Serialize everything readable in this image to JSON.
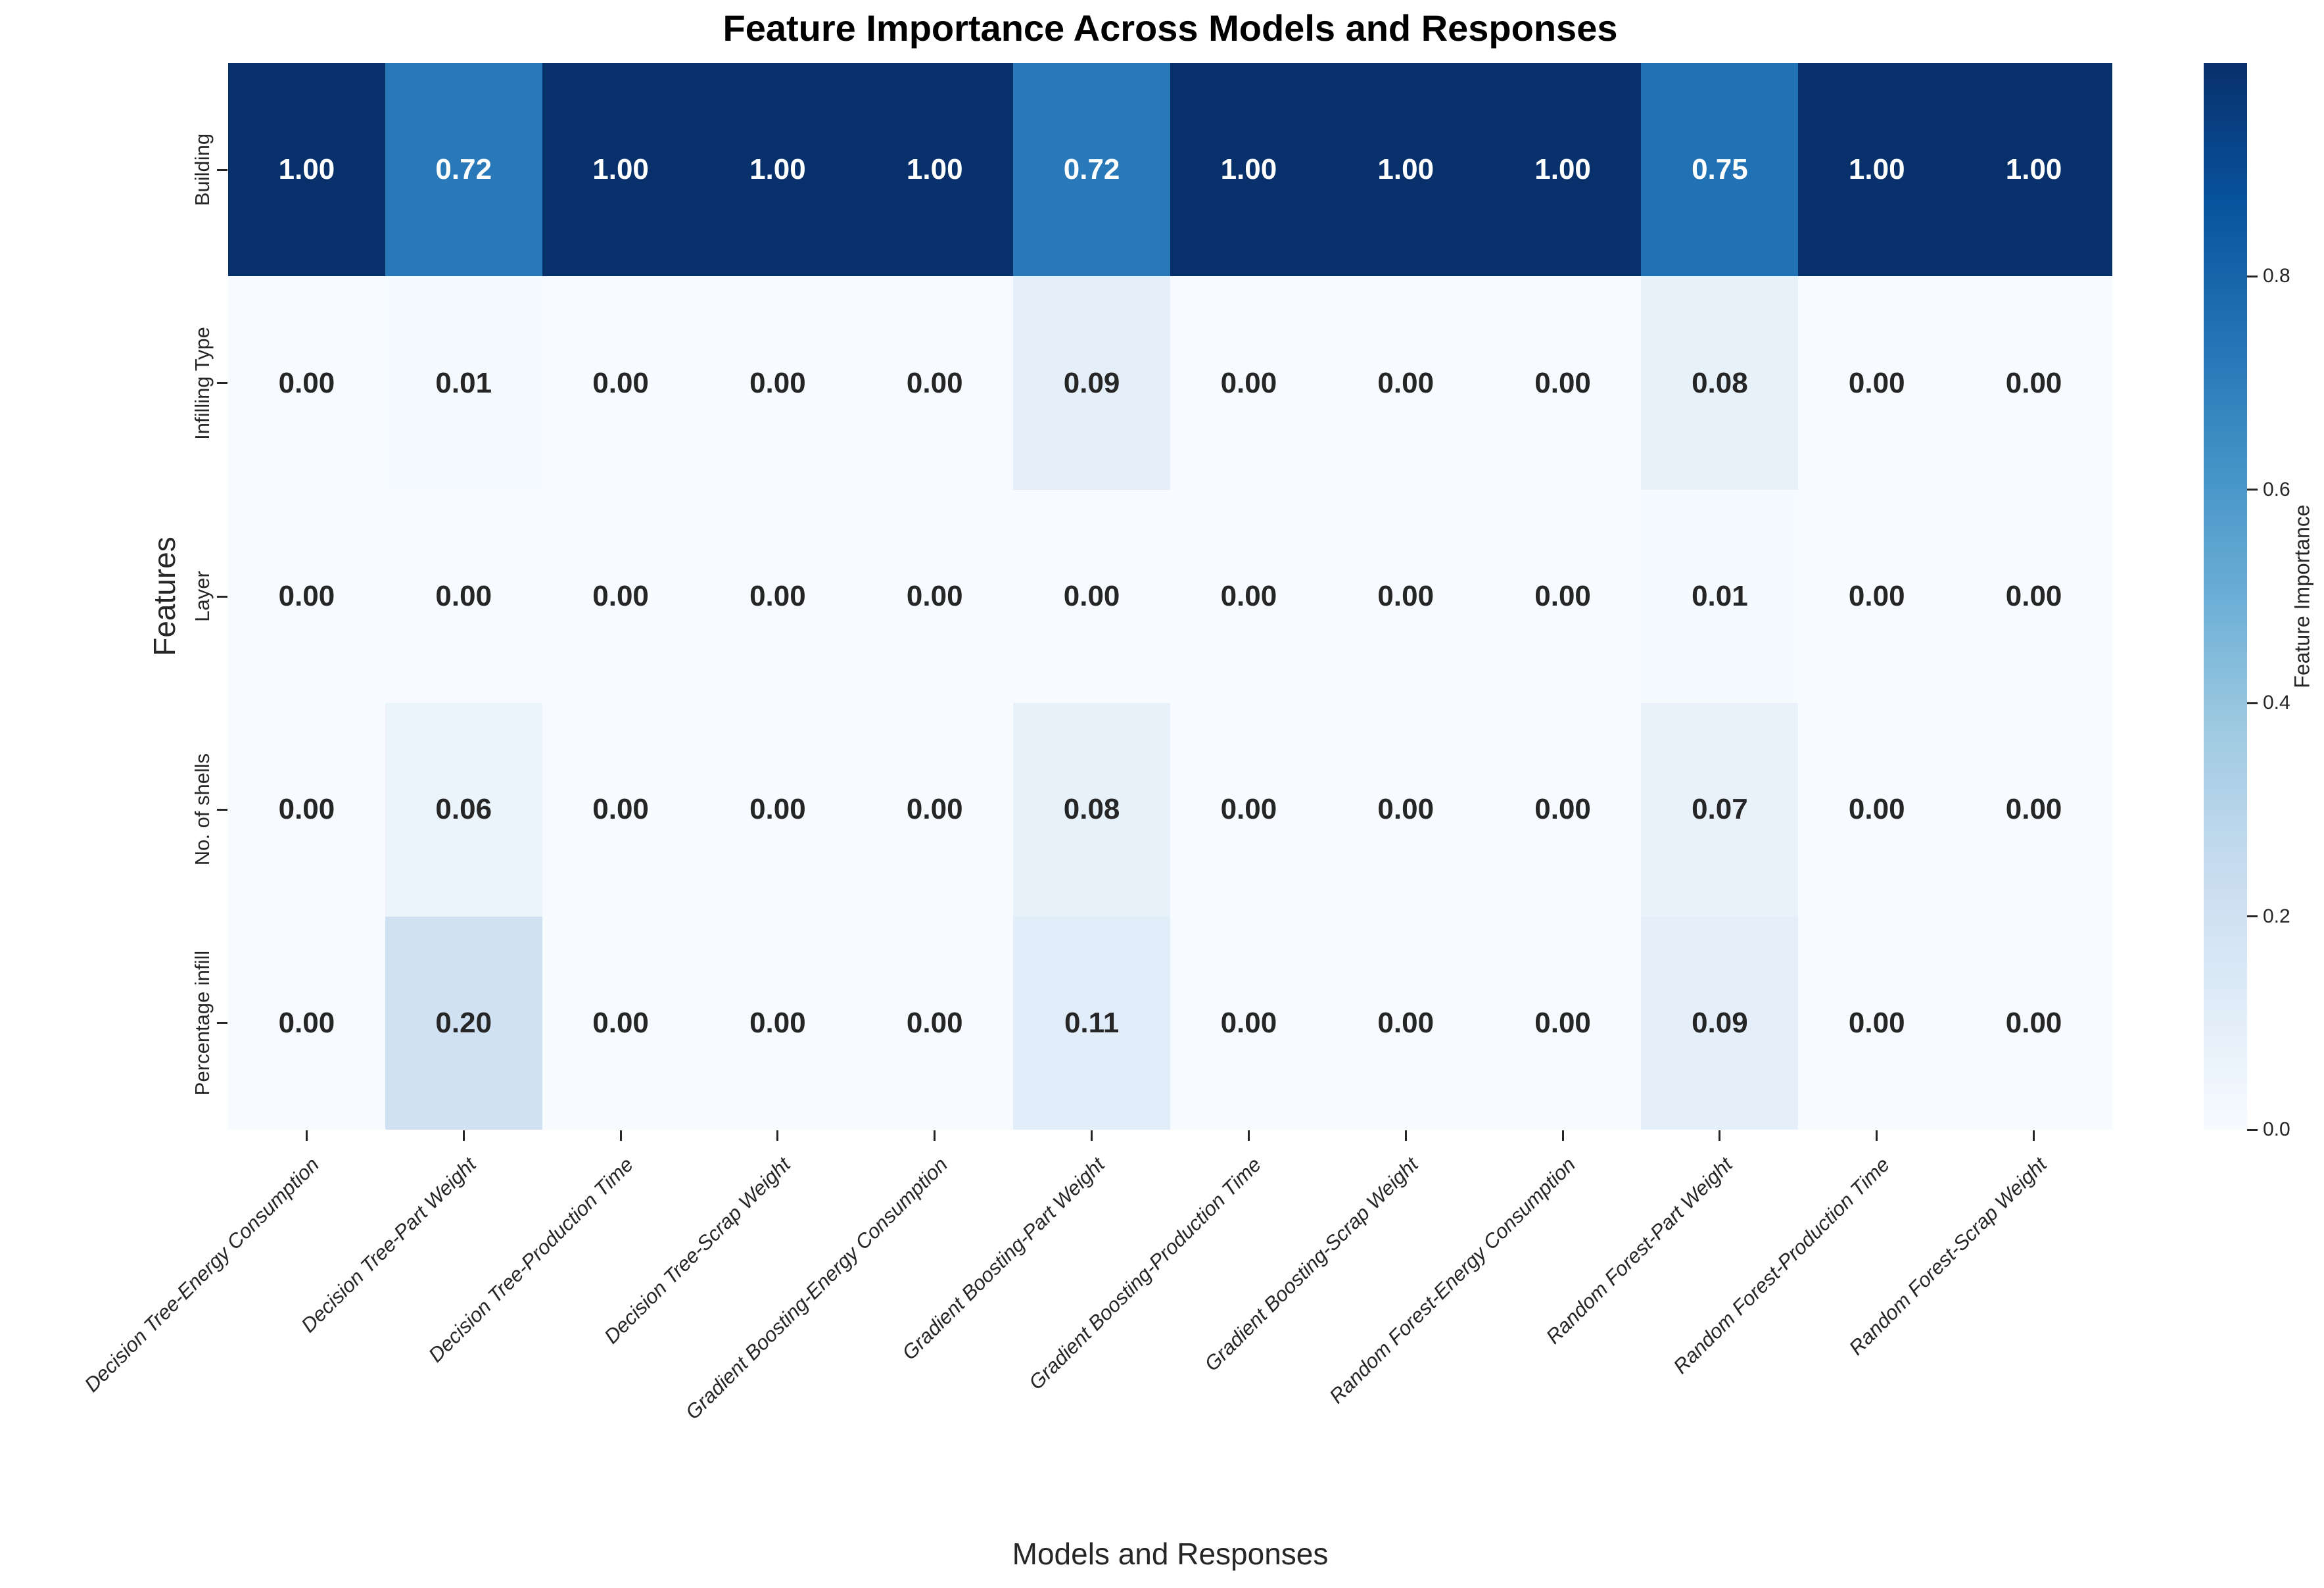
{
  "chart_data": {
    "type": "heatmap",
    "title": "Feature Importance Across Models and Responses",
    "xlabel": "Models and Responses",
    "ylabel": "Features",
    "colorbar_label": "Feature Importance",
    "colormap": "Blues",
    "vmin": 0.0,
    "vmax": 1.0,
    "colorbar_ticks": [
      0.8,
      0.6,
      0.4,
      0.2,
      0.0
    ],
    "legend_position": "right",
    "grid": false,
    "columns": [
      "Decision Tree-Energy Consumption",
      "Decision Tree-Part Weight",
      "Decision Tree-Production Time",
      "Decision Tree-Scrap Weight",
      "Gradient Boosting-Energy Consumption",
      "Gradient Boosting-Part Weight",
      "Gradient Boosting-Production Time",
      "Gradient Boosting-Scrap Weight",
      "Random Forest-Energy Consumption",
      "Random Forest-Part Weight",
      "Random Forest-Production Time",
      "Random Forest-Scrap Weight"
    ],
    "rows": [
      "Building",
      "Infilling Type",
      "Layer",
      "No. of shells",
      "Percentage infill"
    ],
    "values": [
      [
        1.0,
        0.72,
        1.0,
        1.0,
        1.0,
        0.72,
        1.0,
        1.0,
        1.0,
        0.75,
        1.0,
        1.0
      ],
      [
        0.0,
        0.01,
        0.0,
        0.0,
        0.0,
        0.09,
        0.0,
        0.0,
        0.0,
        0.08,
        0.0,
        0.0
      ],
      [
        0.0,
        0.0,
        0.0,
        0.0,
        0.0,
        0.0,
        0.0,
        0.0,
        0.0,
        0.01,
        0.0,
        0.0
      ],
      [
        0.0,
        0.06,
        0.0,
        0.0,
        0.0,
        0.08,
        0.0,
        0.0,
        0.0,
        0.07,
        0.0,
        0.0
      ],
      [
        0.0,
        0.2,
        0.0,
        0.0,
        0.0,
        0.11,
        0.0,
        0.0,
        0.0,
        0.09,
        0.0,
        0.0
      ]
    ]
  },
  "colors": {
    "background": "#ffffff",
    "title_text": "#000000",
    "axis_text": "#262626",
    "annot_light": "#ffffff",
    "annot_dark": "#262626",
    "blues_anchors": [
      "#f7fbff",
      "#deebf7",
      "#c6dbef",
      "#9ecae1",
      "#6baed6",
      "#4292c6",
      "#2171b5",
      "#08519c",
      "#08306b"
    ]
  }
}
